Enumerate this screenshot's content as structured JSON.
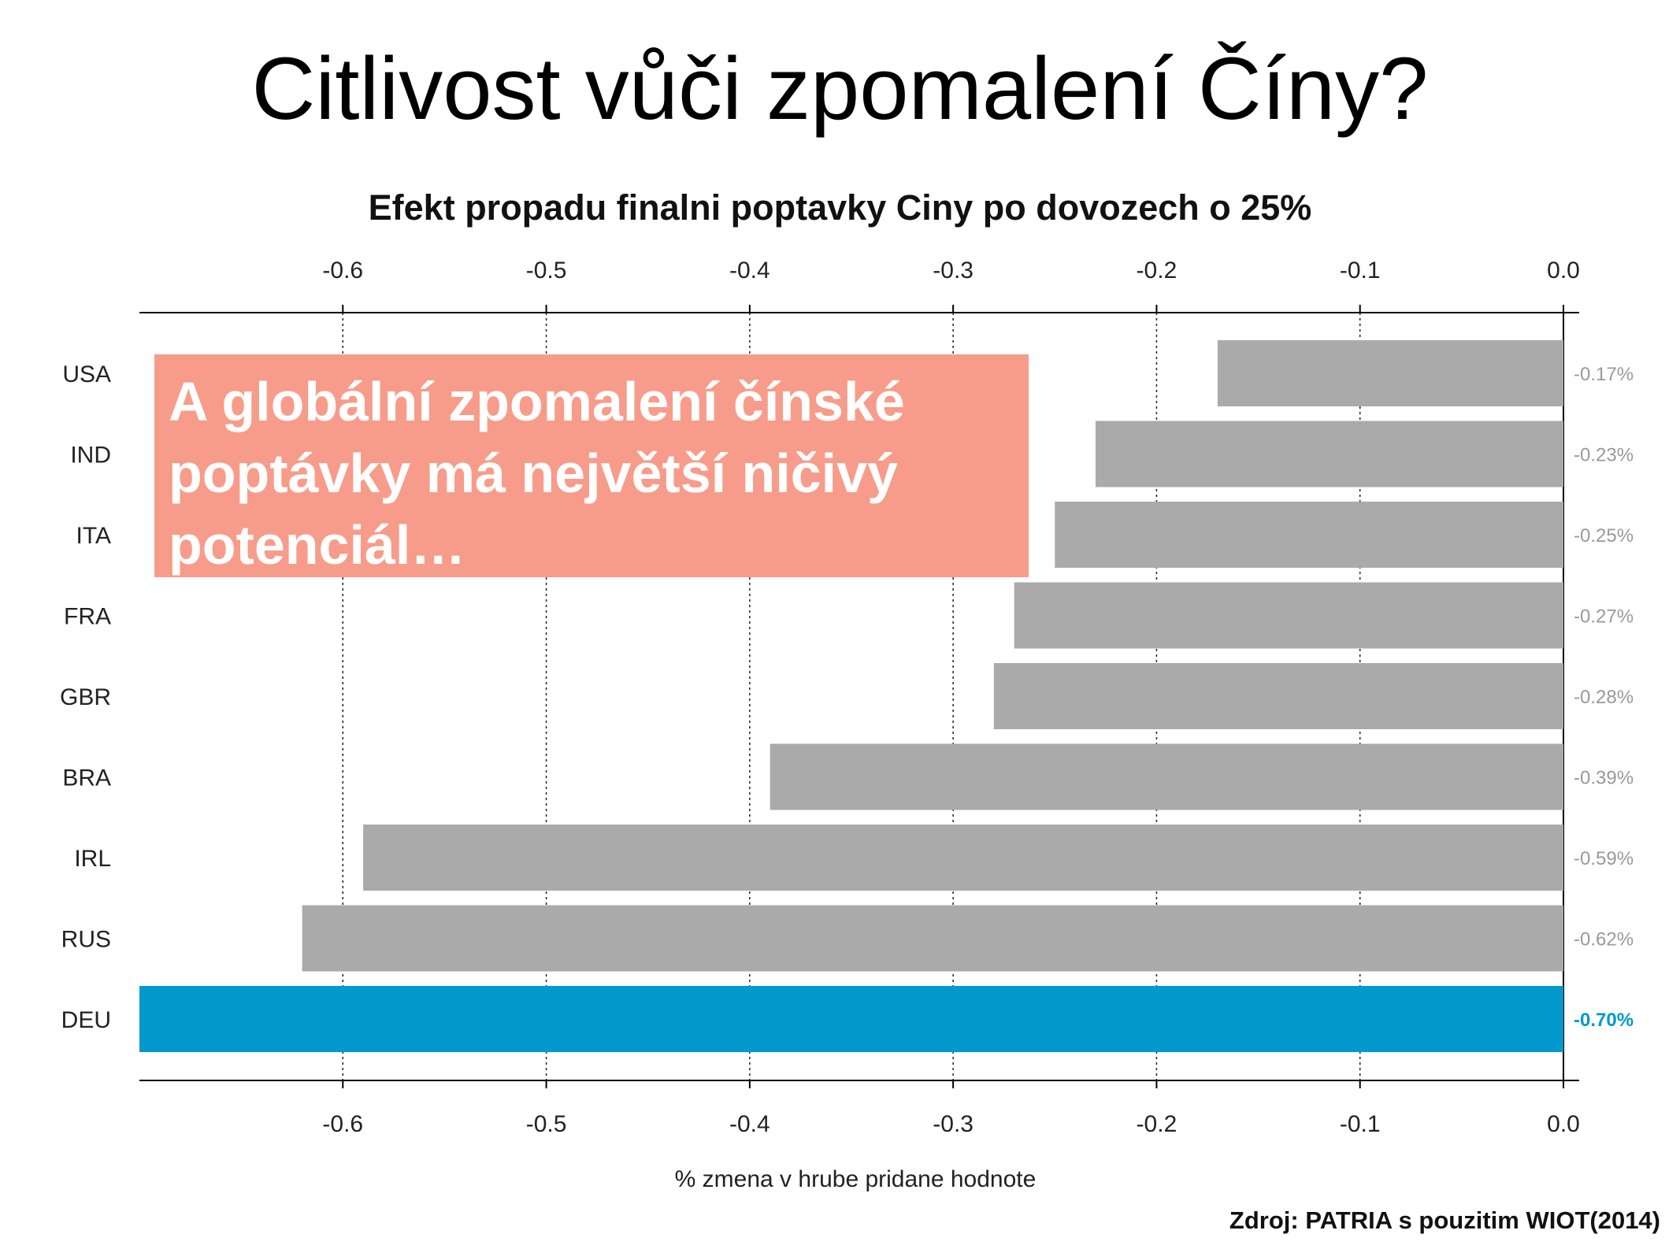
{
  "slide": {
    "title": "Citlivost vůči zpomalení Číny?",
    "callout_lines": [
      "A globální zpomalení čínské",
      "poptávky má největší ničivý",
      "potenciál…"
    ],
    "source": "Zdroj: PATRIA s pouzitim WIOT(2014)"
  },
  "chart_data": {
    "type": "bar",
    "orientation": "horizontal",
    "title": "Efekt propadu finalni poptavky Ciny po dovozech o 25%",
    "xlabel": "% zmena v hrube pridane hodnote",
    "ylabel": "",
    "xlim": [
      -0.7,
      0.0
    ],
    "xticks": [
      -0.6,
      -0.5,
      -0.4,
      -0.3,
      -0.2,
      -0.1,
      0.0
    ],
    "xtick_labels": [
      "-0.6",
      "-0.5",
      "-0.4",
      "-0.3",
      "-0.2",
      "-0.1",
      "0.0"
    ],
    "axis_position": "top and bottom",
    "grid": "vertical dotted",
    "categories": [
      "USA",
      "IND",
      "ITA",
      "FRA",
      "GBR",
      "BRA",
      "IRL",
      "RUS",
      "DEU"
    ],
    "values": [
      -0.17,
      -0.23,
      -0.25,
      -0.27,
      -0.28,
      -0.39,
      -0.59,
      -0.62,
      -0.7
    ],
    "value_labels": [
      "-0.17%",
      "-0.23%",
      "-0.25%",
      "-0.27%",
      "-0.28%",
      "-0.39%",
      "-0.59%",
      "-0.62%",
      "-0.70%"
    ],
    "highlight": "DEU",
    "colors": {
      "bar": "#aaaaaa",
      "highlight": "#0399cc",
      "label": "#999999",
      "callout": "#f79c8a"
    }
  }
}
